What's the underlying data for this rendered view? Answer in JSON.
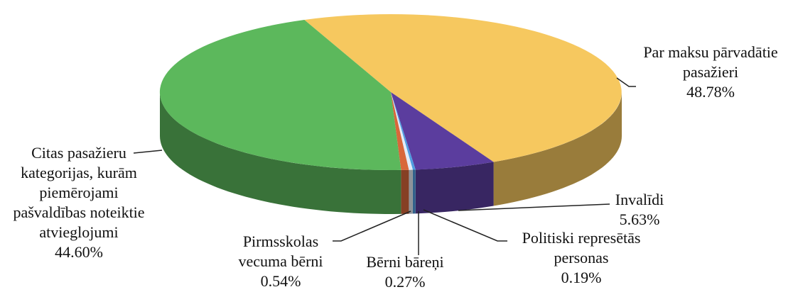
{
  "chart_data": {
    "type": "pie",
    "categories": [
      "Par maksu pārvadātie pasažieri",
      "Invalīdi",
      "Politiski represētās personas",
      "Bērni bāreņi",
      "Pirmsskolas vecuma bērni",
      "Citas pasažieru kategorijas, kurām piemērojami pašvaldības noteiktie atvieglojumi"
    ],
    "values": [
      48.78,
      5.63,
      0.19,
      0.27,
      0.54,
      44.6
    ],
    "value_labels": [
      "48.78%",
      "5.63%",
      "0.19%",
      "0.27%",
      "0.54%",
      "44.60%"
    ],
    "colors": [
      "#f6c85f",
      "#5b3d9e",
      "#4f9de0",
      "#e3ebf7",
      "#d8673a",
      "#5cb85c"
    ]
  }
}
